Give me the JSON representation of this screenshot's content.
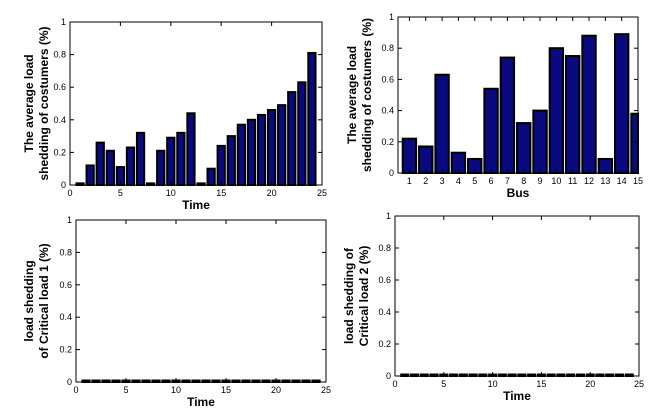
{
  "chart_data": [
    {
      "type": "bar",
      "ylabel_lines": [
        "The average load",
        "shedding of costumers (%)"
      ],
      "xlabel": "Time",
      "x": [
        1,
        2,
        3,
        4,
        5,
        6,
        7,
        8,
        9,
        10,
        11,
        12,
        13,
        14,
        15,
        16,
        17,
        18,
        19,
        20,
        21,
        22,
        23,
        24
      ],
      "values": [
        0.01,
        0.12,
        0.26,
        0.21,
        0.11,
        0.23,
        0.32,
        0.01,
        0.21,
        0.29,
        0.32,
        0.44,
        0.01,
        0.1,
        0.24,
        0.3,
        0.37,
        0.4,
        0.43,
        0.46,
        0.49,
        0.57,
        0.63,
        0.81
      ],
      "xlim": [
        0,
        25
      ],
      "ylim": [
        0,
        1
      ],
      "xticks": [
        0,
        5,
        10,
        15,
        20,
        25
      ],
      "yticks": [
        0,
        0.2,
        0.4,
        0.6,
        0.8,
        1
      ],
      "bar_color": "#0a0a80",
      "grid": false
    },
    {
      "type": "bar",
      "ylabel_lines": [
        "The average load",
        "shedding of costumers (%)"
      ],
      "xlabel": "Bus",
      "x": [
        1,
        2,
        3,
        4,
        5,
        6,
        7,
        8,
        9,
        10,
        11,
        12,
        13,
        14,
        15
      ],
      "values": [
        0.22,
        0.17,
        0.63,
        0.13,
        0.09,
        0.54,
        0.74,
        0.32,
        0.4,
        0.8,
        0.75,
        0.88,
        0.09,
        0.89,
        0.38
      ],
      "xlim": [
        0.3,
        15
      ],
      "ylim": [
        0,
        1
      ],
      "xticks": [
        1,
        2,
        3,
        4,
        5,
        6,
        7,
        8,
        9,
        10,
        11,
        12,
        13,
        14,
        15
      ],
      "yticks": [
        0,
        0.2,
        0.4,
        0.6,
        0.8,
        1
      ],
      "bar_color": "#0a0a80",
      "grid": false
    },
    {
      "type": "bar",
      "ylabel_lines": [
        "load shedding",
        "of Critical load 1 (%)"
      ],
      "xlabel": "Time",
      "x": [
        1,
        2,
        3,
        4,
        5,
        6,
        7,
        8,
        9,
        10,
        11,
        12,
        13,
        14,
        15,
        16,
        17,
        18,
        19,
        20,
        21,
        22,
        23,
        24
      ],
      "values": [
        0,
        0,
        0,
        0,
        0,
        0,
        0,
        0,
        0,
        0,
        0,
        0,
        0,
        0,
        0,
        0,
        0,
        0,
        0,
        0,
        0,
        0,
        0,
        0
      ],
      "xlim": [
        0,
        25
      ],
      "ylim": [
        0,
        1
      ],
      "xticks": [
        0,
        5,
        10,
        15,
        20,
        25
      ],
      "yticks": [
        0,
        0.2,
        0.4,
        0.6,
        0.8,
        1
      ],
      "bar_color": "#0a0a80",
      "grid": false
    },
    {
      "type": "bar",
      "ylabel_lines": [
        "load shedding of",
        "Critical load 2 (%)"
      ],
      "xlabel": "Time",
      "x": [
        1,
        2,
        3,
        4,
        5,
        6,
        7,
        8,
        9,
        10,
        11,
        12,
        13,
        14,
        15,
        16,
        17,
        18,
        19,
        20,
        21,
        22,
        23,
        24
      ],
      "values": [
        0,
        0,
        0,
        0,
        0,
        0,
        0,
        0,
        0,
        0,
        0,
        0,
        0,
        0,
        0,
        0,
        0,
        0,
        0,
        0,
        0,
        0,
        0,
        0
      ],
      "xlim": [
        0,
        25
      ],
      "ylim": [
        0,
        1
      ],
      "xticks": [
        0,
        5,
        10,
        15,
        20,
        25
      ],
      "yticks": [
        0,
        0.2,
        0.4,
        0.6,
        0.8,
        1
      ],
      "bar_color": "#0a0a80",
      "grid": false
    }
  ]
}
